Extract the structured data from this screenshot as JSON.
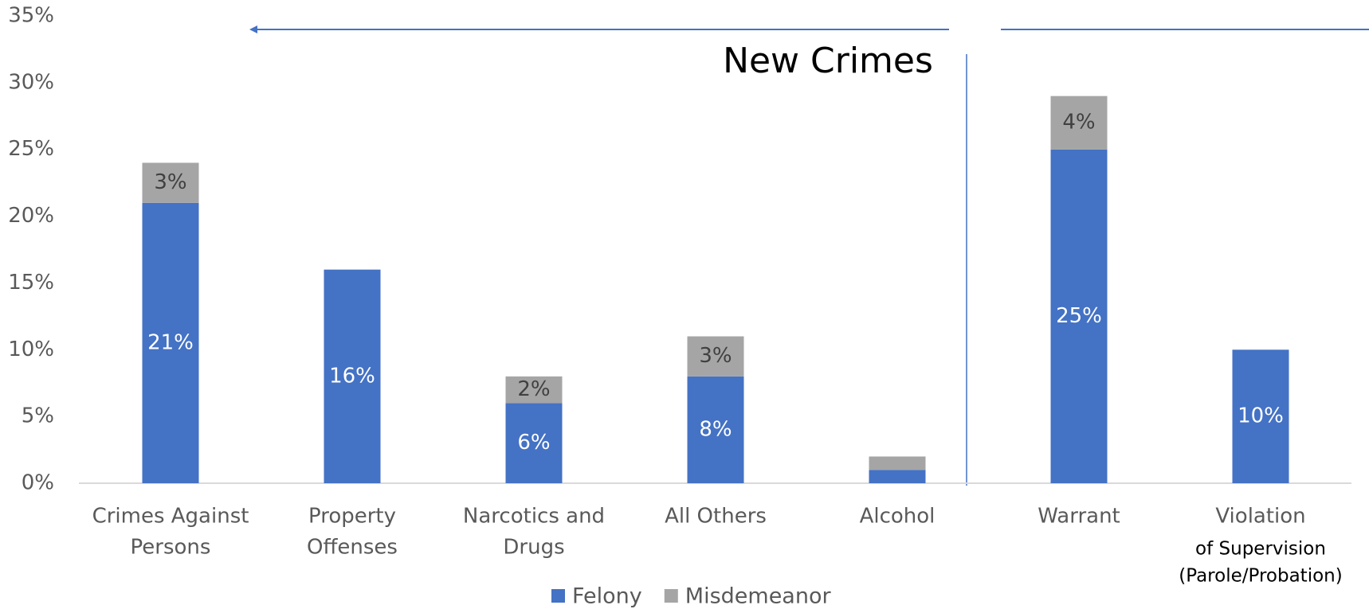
{
  "chart_data": {
    "type": "stacked_bar",
    "annotation": "New Crimes",
    "categories": [
      [
        "Crimes Against",
        "Persons"
      ],
      [
        "Property",
        "Offenses"
      ],
      [
        "Narcotics and",
        "Drugs"
      ],
      [
        "All Others"
      ],
      [
        "Alcohol"
      ],
      [
        "Warrant"
      ],
      [
        "Violation",
        "of Supervision",
        "(Parole/Probation)"
      ]
    ],
    "series": [
      {
        "name": "Felony",
        "color": "#4472c4",
        "values": [
          21,
          16,
          6,
          8,
          1,
          25,
          10
        ],
        "value_labels": [
          "21%",
          "16%",
          "6%",
          "8%",
          null,
          "25%",
          "10%"
        ]
      },
      {
        "name": "Misdemeanor",
        "color": "#a5a5a5",
        "values": [
          3,
          null,
          2,
          3,
          1,
          4,
          null
        ],
        "value_labels": [
          "3%",
          null,
          "2%",
          "3%",
          null,
          "4%",
          null
        ]
      }
    ],
    "ylim": [
      0,
      35
    ],
    "yticks": [
      {
        "value": 0,
        "label": "0%"
      },
      {
        "value": 5,
        "label": "5%"
      },
      {
        "value": 10,
        "label": "10%"
      },
      {
        "value": 15,
        "label": "15%"
      },
      {
        "value": 20,
        "label": "20%"
      },
      {
        "value": 25,
        "label": "25%"
      },
      {
        "value": 30,
        "label": "30%"
      },
      {
        "value": 35,
        "label": "35%"
      }
    ],
    "grid": false
  }
}
